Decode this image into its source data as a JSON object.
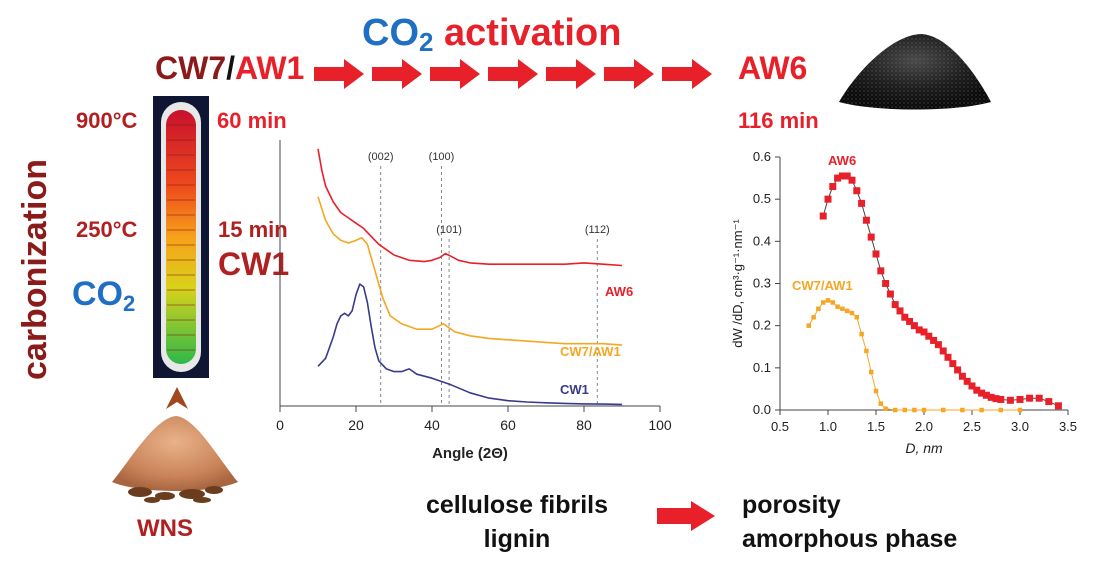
{
  "title": {
    "prefix": "CO",
    "sub": "2",
    "rest": " activation"
  },
  "flow": {
    "start_a": "CW7",
    "slash": "/",
    "start_b": "AW1",
    "end": "AW6",
    "arrow_count": 7
  },
  "left_panel": {
    "process": "carbonization",
    "temp_high": "900°C",
    "temp_low": "250°C",
    "time_high": "60 min",
    "time_low": "15 min",
    "sample": "CW1",
    "gas_prefix": "CO",
    "gas_sub": "2",
    "raw_material": "WNS"
  },
  "activation_time": "116 min",
  "bottom": {
    "left_line1": "cellulose fibrils",
    "left_line2": "lignin",
    "right_line1": "porosity",
    "right_line2": "amorphous phase"
  },
  "colors": {
    "dark_red": "#8b1a1a",
    "red": "#e8202a",
    "blue": "#1f6fc2",
    "orange": "#f5a623",
    "navy": "#3a3a8c"
  },
  "chart_data": [
    {
      "type": "line",
      "title": "",
      "xlabel": "Angle (2Θ)",
      "ylabel": "",
      "xlim": [
        0,
        100
      ],
      "xticks": [
        0,
        20,
        40,
        60,
        80,
        100
      ],
      "peak_labels": [
        {
          "label": "(002)",
          "x": 26.5
        },
        {
          "label": "(100)",
          "x": 42.5
        },
        {
          "label": "(101)",
          "x": 44.5
        },
        {
          "label": "(112)",
          "x": 83.5
        }
      ],
      "series": [
        {
          "name": "AW6",
          "color": "#e8202a",
          "x": [
            10,
            11,
            12,
            14,
            16,
            18,
            20,
            22,
            24,
            26,
            28,
            30,
            34,
            38,
            40,
            42,
            43.5,
            45,
            47,
            50,
            55,
            60,
            65,
            70,
            75,
            80,
            85,
            90
          ],
          "y": [
            0.97,
            0.89,
            0.83,
            0.77,
            0.73,
            0.71,
            0.69,
            0.67,
            0.64,
            0.61,
            0.59,
            0.57,
            0.55,
            0.545,
            0.55,
            0.56,
            0.575,
            0.565,
            0.55,
            0.54,
            0.535,
            0.535,
            0.535,
            0.535,
            0.535,
            0.54,
            0.535,
            0.53
          ]
        },
        {
          "name": "CW7/AW1",
          "color": "#f5a623",
          "x": [
            10,
            12,
            14,
            16,
            18,
            20,
            21.5,
            23,
            25,
            27,
            29,
            32,
            36,
            40,
            43,
            46,
            50,
            55,
            60,
            65,
            70,
            75,
            80,
            85,
            90
          ],
          "y": [
            0.79,
            0.7,
            0.65,
            0.625,
            0.615,
            0.625,
            0.635,
            0.61,
            0.51,
            0.41,
            0.34,
            0.31,
            0.29,
            0.29,
            0.31,
            0.28,
            0.265,
            0.255,
            0.25,
            0.245,
            0.24,
            0.235,
            0.235,
            0.235,
            0.23
          ]
        },
        {
          "name": "CW1",
          "color": "#3a3a8c",
          "x": [
            10,
            12,
            14,
            15,
            16,
            17,
            18,
            19,
            20,
            21,
            22,
            23,
            24,
            25,
            26,
            28,
            30,
            32,
            34,
            36,
            40,
            45,
            50,
            55,
            60,
            65,
            70,
            75,
            80,
            85,
            90
          ],
          "y": [
            0.15,
            0.18,
            0.26,
            0.31,
            0.34,
            0.35,
            0.34,
            0.36,
            0.42,
            0.46,
            0.45,
            0.39,
            0.3,
            0.22,
            0.17,
            0.14,
            0.13,
            0.13,
            0.14,
            0.12,
            0.105,
            0.08,
            0.05,
            0.03,
            0.02,
            0.015,
            0.012,
            0.01,
            0.008,
            0.007,
            0.006
          ]
        }
      ]
    },
    {
      "type": "scatter",
      "title": "",
      "xlabel": "D, nm",
      "ylabel": "dW /dD, cm³·g⁻¹·nm⁻¹",
      "xlim": [
        0.5,
        3.5
      ],
      "ylim": [
        0,
        0.6
      ],
      "xticks": [
        0.5,
        1.0,
        1.5,
        2.0,
        2.5,
        3.0,
        3.5
      ],
      "yticks": [
        0.0,
        0.1,
        0.2,
        0.3,
        0.4,
        0.5,
        0.6
      ],
      "series": [
        {
          "name": "AW6",
          "color": "#e8202a",
          "x": [
            0.95,
            1.0,
            1.05,
            1.1,
            1.15,
            1.2,
            1.25,
            1.3,
            1.35,
            1.4,
            1.45,
            1.5,
            1.55,
            1.6,
            1.65,
            1.7,
            1.75,
            1.8,
            1.85,
            1.9,
            1.95,
            2.0,
            2.05,
            2.1,
            2.15,
            2.2,
            2.25,
            2.3,
            2.35,
            2.4,
            2.45,
            2.5,
            2.55,
            2.6,
            2.65,
            2.7,
            2.75,
            2.8,
            2.9,
            3.0,
            3.1,
            3.2,
            3.3,
            3.4
          ],
          "y": [
            0.46,
            0.5,
            0.53,
            0.55,
            0.555,
            0.555,
            0.545,
            0.52,
            0.49,
            0.45,
            0.41,
            0.37,
            0.33,
            0.3,
            0.275,
            0.25,
            0.235,
            0.22,
            0.21,
            0.2,
            0.19,
            0.185,
            0.175,
            0.165,
            0.155,
            0.14,
            0.125,
            0.11,
            0.095,
            0.08,
            0.068,
            0.057,
            0.047,
            0.04,
            0.035,
            0.03,
            0.027,
            0.025,
            0.023,
            0.025,
            0.028,
            0.028,
            0.02,
            0.01
          ]
        },
        {
          "name": "CW7/AW1",
          "color": "#f5a623",
          "x": [
            0.8,
            0.85,
            0.9,
            0.95,
            1.0,
            1.05,
            1.1,
            1.15,
            1.2,
            1.25,
            1.3,
            1.35,
            1.4,
            1.45,
            1.5,
            1.55,
            1.6,
            1.7,
            1.8,
            1.9,
            2.0,
            2.2,
            2.4,
            2.6,
            2.8,
            3.0
          ],
          "y": [
            0.2,
            0.22,
            0.24,
            0.255,
            0.26,
            0.255,
            0.245,
            0.24,
            0.235,
            0.23,
            0.22,
            0.18,
            0.14,
            0.09,
            0.045,
            0.015,
            0.003,
            0.0,
            0.0,
            0.0,
            0.0,
            0.0,
            0.0,
            0.0,
            0.0,
            0.0
          ]
        }
      ]
    }
  ]
}
